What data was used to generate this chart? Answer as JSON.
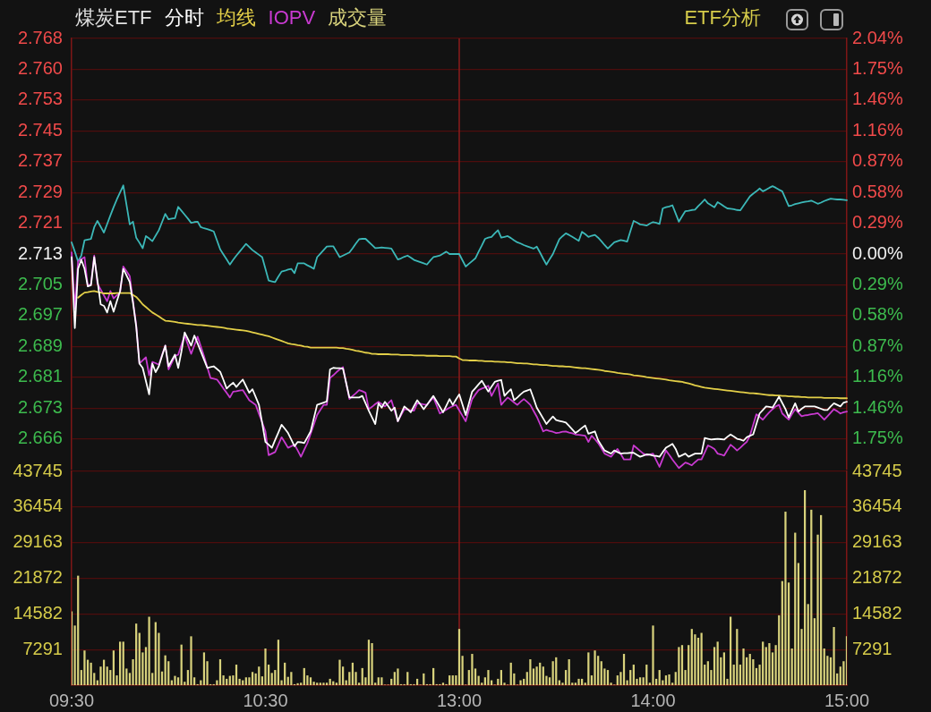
{
  "chart_data": [
    {
      "type": "line",
      "title": "煤炭ETF",
      "annotations": [
        "ETF分析"
      ],
      "legend": "top left",
      "grid": "y",
      "tick_labels": "y",
      "categories": [
        "09:30",
        null,
        null,
        null,
        null,
        null,
        null,
        null,
        null,
        null,
        null,
        null,
        null,
        null,
        null,
        null,
        null,
        null,
        null,
        null,
        null,
        null,
        null,
        null,
        null,
        null,
        null,
        null,
        null,
        null,
        null,
        null,
        null,
        null,
        null,
        null,
        null,
        null,
        null,
        null,
        null,
        null,
        null,
        null,
        null,
        null,
        null,
        null,
        null,
        null,
        null,
        null,
        null,
        null,
        null,
        null,
        null,
        null,
        null,
        null,
        "10:30",
        null,
        null,
        null,
        null,
        null,
        null,
        null,
        null,
        null,
        null,
        null,
        null,
        null,
        null,
        null,
        null,
        null,
        null,
        null,
        null,
        null,
        null,
        null,
        null,
        null,
        null,
        null,
        null,
        null,
        null,
        null,
        null,
        null,
        null,
        null,
        null,
        null,
        null,
        null,
        null,
        null,
        null,
        null,
        null,
        null,
        null,
        null,
        null,
        null,
        null,
        null,
        null,
        null,
        null,
        null,
        null,
        null,
        null,
        null,
        "13:00",
        null,
        null,
        null,
        null,
        null,
        null,
        null,
        null,
        null,
        null,
        null,
        null,
        null,
        null,
        null,
        null,
        null,
        null,
        null,
        null,
        null,
        null,
        null,
        null,
        null,
        null,
        null,
        null,
        null,
        null,
        null,
        null,
        null,
        null,
        null,
        null,
        null,
        null,
        null,
        null,
        null,
        null,
        null,
        null,
        null,
        null,
        null,
        null,
        null,
        null,
        null,
        null,
        null,
        null,
        null,
        null,
        null,
        null,
        null,
        "14:00",
        null,
        null,
        null,
        null,
        null,
        null,
        null,
        null,
        null,
        null,
        null,
        null,
        null,
        null,
        null,
        null,
        null,
        null,
        null,
        null,
        null,
        null,
        null,
        null,
        null,
        null,
        null,
        null,
        null,
        null,
        null,
        null,
        null,
        null,
        null,
        null,
        null,
        null,
        null,
        null,
        null,
        null,
        null,
        null,
        null,
        null,
        null,
        null,
        null,
        null,
        null,
        null,
        null,
        null,
        null,
        null,
        null,
        null,
        null,
        "15:00"
      ],
      "ylim": [
        2.6577,
        2.7683
      ],
      "yticks": [
        {
          "value": 2.6656,
          "label": "2.666"
        },
        {
          "value": 2.6735,
          "label": "2.673"
        },
        {
          "value": 2.6814,
          "label": "2.681"
        },
        {
          "value": 2.6893,
          "label": "2.689"
        },
        {
          "value": 2.6972,
          "label": "2.697"
        },
        {
          "value": 2.7051,
          "label": "2.705"
        },
        2.713,
        {
          "value": 2.7209,
          "label": "2.721"
        },
        {
          "value": 2.7288,
          "label": "2.729"
        },
        {
          "value": 2.7367,
          "label": "2.737"
        },
        {
          "value": 2.7446,
          "label": "2.745"
        },
        {
          "value": 2.7525,
          "label": "2.753"
        },
        {
          "value": 2.7604,
          "label": "2.760"
        },
        {
          "value": 2.7683,
          "label": "2.768"
        }
      ],
      "y2lim": [
        -2.0383,
        2.0383
      ],
      "y2ticks": [
        {
          "value": -1.7472,
          "label": "1.75%"
        },
        {
          "value": -1.456,
          "label": "1.46%"
        },
        {
          "value": -1.1648,
          "label": "1.16%"
        },
        {
          "value": -0.8736,
          "label": "0.87%"
        },
        {
          "value": -0.5824,
          "label": "0.58%"
        },
        {
          "value": -0.2912,
          "label": "0.29%"
        },
        {
          "value": 0,
          "label": "0.00%"
        },
        {
          "value": 0.2912,
          "label": "0.29%"
        },
        {
          "value": 0.5824,
          "label": "0.58%"
        },
        {
          "value": 0.8736,
          "label": "0.87%"
        },
        {
          "value": 1.1648,
          "label": "1.16%"
        },
        {
          "value": 1.456,
          "label": "1.46%"
        },
        {
          "value": 1.7472,
          "label": "1.75%"
        },
        {
          "value": 2.0383,
          "label": "2.04%"
        }
      ],
      "ref_lines": [
        {
          "axis": "x",
          "value": "13:00",
          "color": "#8c1c1c"
        }
      ],
      "series": [
        {
          "name": "分时",
          "color": "#ffffff",
          "values": [
            2.7122,
            2.694,
            2.7092,
            2.7115,
            2.7092,
            2.7047,
            2.705,
            2.7122,
            2.7062,
            2.7001,
            2.6997,
            2.698,
            2.7009,
            2.6982,
            2.7009,
            2.7035,
            2.7092,
            2.7075,
            2.7058,
            2.7005,
            2.6944,
            2.6849,
            2.6838,
            2.6804,
            2.677,
            2.6849,
            2.6827,
            2.6842,
            2.6869,
            2.6895,
            2.6842,
            2.6857,
            2.6872,
            2.6838,
            2.688,
            2.6929,
            2.6912,
            2.6895,
            2.6921,
            2.6901,
            2.688,
            2.6859,
            2.6838,
            2.684,
            2.6842,
            2.6835,
            2.6828,
            2.6807,
            2.6785,
            2.6793,
            2.68,
            2.6789,
            2.6799,
            2.6808,
            2.6791,
            2.6774,
            2.6783,
            2.6763,
            2.6743,
            2.6696,
            2.6648,
            2.6641,
            2.6633,
            2.6653,
            2.6672,
            2.6692,
            2.6682,
            2.6671,
            2.6654,
            2.6637,
            2.6648,
            2.6647,
            2.6645,
            2.666,
            2.6675,
            2.6709,
            2.6743,
            2.6746,
            2.6749,
            2.6752,
            2.6834,
            2.6838,
            2.6837,
            2.6837,
            2.6836,
            2.6799,
            2.6762,
            2.6762,
            2.6762,
            2.6762,
            2.6766,
            2.6747,
            2.6728,
            2.6711,
            2.6694,
            2.6747,
            2.6736,
            2.6751,
            2.674,
            2.6728,
            2.6736,
            2.6701,
            2.672,
            2.6739,
            2.6732,
            2.6724,
            2.674,
            2.6755,
            2.6744,
            2.6732,
            2.6743,
            2.6755,
            2.6766,
            2.6752,
            2.6738,
            2.6724,
            2.6741,
            2.6758,
            2.6743,
            2.6757,
            2.677,
            2.6744,
            2.6717,
            2.6747,
            2.6777,
            2.6786,
            2.6796,
            2.6805,
            2.6791,
            2.6777,
            2.679,
            2.6802,
            2.6805,
            2.6807,
            2.6766,
            2.6775,
            2.6783,
            2.6755,
            2.6762,
            2.677,
            2.6777,
            2.678,
            2.6783,
            2.676,
            2.6736,
            2.6722,
            2.6708,
            2.6694,
            2.6704,
            2.6713,
            2.6704,
            2.6702,
            2.67,
            2.6698,
            2.6689,
            2.668,
            2.6671,
            2.6677,
            2.6684,
            2.669,
            2.6669,
            2.6672,
            2.6675,
            2.6652,
            2.6639,
            2.6626,
            2.6622,
            2.6618,
            2.6626,
            2.6622,
            2.6618,
            2.6619,
            2.6619,
            2.662,
            2.662,
            2.6615,
            2.661,
            2.6613,
            2.6616,
            2.6615,
            2.6613,
            2.6612,
            2.661,
            2.6622,
            2.6633,
            2.6638,
            2.6643,
            2.663,
            2.661,
            2.6614,
            2.6618,
            2.661,
            2.6614,
            2.6618,
            2.6618,
            2.6618,
            2.6658,
            2.6656,
            2.6654,
            2.6655,
            2.6656,
            2.6655,
            2.6654,
            2.6661,
            2.6667,
            2.6662,
            2.6656,
            2.6654,
            2.6651,
            2.666,
            2.6664,
            2.6667,
            2.6694,
            2.6721,
            2.673,
            2.6739,
            2.6738,
            2.6736,
            2.675,
            2.6764,
            2.6748,
            2.6732,
            2.6711,
            2.6729,
            2.6747,
            2.6726,
            2.6733,
            2.6739,
            2.6739,
            2.6739,
            2.6739,
            2.6736,
            2.6733,
            2.673,
            2.673,
            2.6739,
            2.6747,
            2.6743,
            2.6739,
            2.6749,
            2.6751
          ]
        },
        {
          "name": "均线",
          "color": "#e3cf48",
          "values": [
            null,
            null,
            2.7018,
            2.7025,
            2.7031,
            2.7032,
            2.7034,
            2.7035,
            2.7033,
            2.7031,
            2.7029,
            2.7029,
            2.7029,
            2.7029,
            2.703,
            2.703,
            2.703,
            2.703,
            2.703,
            2.7025,
            2.702,
            2.7011,
            2.7001,
            2.6994,
            2.6987,
            2.698,
            2.6975,
            2.697,
            2.6964,
            2.6959,
            2.6958,
            2.6957,
            2.6956,
            2.6954,
            2.6953,
            2.6952,
            2.6951,
            2.695,
            2.6949,
            2.6948,
            2.6948,
            2.6947,
            2.6946,
            2.6945,
            2.6944,
            2.6943,
            2.6942,
            2.6941,
            2.6939,
            2.6938,
            2.6937,
            2.6936,
            2.6935,
            2.6934,
            2.6933,
            2.6931,
            2.6929,
            2.6927,
            2.6925,
            2.6923,
            2.6921,
            2.6919,
            2.6916,
            2.6913,
            2.691,
            2.6907,
            2.6904,
            2.6901,
            2.6899,
            2.6898,
            2.6896,
            2.6895,
            2.6893,
            2.6892,
            2.689,
            2.689,
            2.689,
            2.689,
            2.689,
            2.689,
            2.689,
            2.689,
            2.689,
            2.6889,
            2.6889,
            2.6887,
            2.6886,
            2.6884,
            2.6882,
            2.6881,
            2.6879,
            2.6877,
            2.6876,
            2.6874,
            2.6874,
            2.6873,
            2.6873,
            2.6873,
            2.6873,
            2.6872,
            2.6872,
            2.6872,
            2.6871,
            2.6871,
            2.6871,
            2.6871,
            2.687,
            2.687,
            2.687,
            2.687,
            2.6869,
            2.6869,
            2.6869,
            2.6869,
            2.6868,
            2.6868,
            2.6868,
            2.6868,
            2.6867,
            2.6867,
            2.6862,
            2.6858,
            2.6858,
            2.6857,
            2.6857,
            2.6857,
            2.6856,
            2.6856,
            2.6855,
            2.6855,
            2.6855,
            2.6854,
            2.6854,
            2.6853,
            2.6853,
            2.6852,
            2.6852,
            2.6851,
            2.685,
            2.685,
            2.6849,
            2.6849,
            2.6848,
            2.6847,
            2.6847,
            2.6846,
            2.6845,
            2.6845,
            2.6844,
            2.6843,
            2.6843,
            2.6842,
            2.6842,
            2.6841,
            2.6841,
            2.684,
            2.6839,
            2.6838,
            2.6837,
            2.6837,
            2.6836,
            2.6835,
            2.6834,
            2.6833,
            2.6832,
            2.683,
            2.6829,
            2.6828,
            2.6827,
            2.6825,
            2.6824,
            2.6823,
            2.6822,
            2.6821,
            2.6819,
            2.6818,
            2.6817,
            2.6816,
            2.6814,
            2.6813,
            2.6812,
            2.6811,
            2.681,
            2.6809,
            2.6808,
            2.6806,
            2.6805,
            2.6804,
            2.6803,
            2.6802,
            2.68,
            2.6798,
            2.6796,
            2.6793,
            2.6791,
            2.6789,
            2.6787,
            2.6786,
            2.6785,
            2.6784,
            2.6783,
            2.6782,
            2.6781,
            2.678,
            2.6779,
            2.6778,
            2.6777,
            2.6776,
            2.6775,
            2.6774,
            2.6773,
            2.6773,
            2.6772,
            2.6771,
            2.677,
            2.6769,
            2.6768,
            2.6768,
            2.6767,
            2.6767,
            2.6766,
            2.6766,
            2.6765,
            2.6765,
            2.6764,
            2.6764,
            2.6763,
            2.6763,
            2.6762,
            2.6762,
            2.6762,
            2.6762,
            2.6762,
            2.6761,
            2.6761,
            2.6761,
            2.6761,
            2.6761,
            2.676,
            2.676,
            2.676
          ]
        },
        {
          "name": "IOPV",
          "color": "#c83ad0",
          "values": [
            2.7134,
            2.699,
            2.7111,
            2.7117,
            2.7122,
            2.7047,
            2.7054,
            2.7126,
            2.7054,
            2.7039,
            2.7024,
            2.7009,
            2.7035,
            2.7016,
            2.7024,
            2.7031,
            2.7098,
            2.7086,
            2.7073,
            2.7009,
            2.6948,
            2.6849,
            2.6857,
            2.6865,
            2.6819,
            2.6853,
            2.685,
            2.6846,
            2.6871,
            2.6895,
            2.6834,
            2.6851,
            2.6868,
            2.6872,
            2.6897,
            2.6921,
            2.6898,
            2.6874,
            2.6896,
            2.6918,
            2.6893,
            2.6868,
            2.684,
            2.6812,
            2.681,
            2.6808,
            2.6797,
            2.6785,
            2.6774,
            2.6762,
            2.6777,
            2.6778,
            2.678,
            2.6781,
            2.6768,
            2.6755,
            2.6749,
            2.6743,
            2.672,
            2.6698,
            2.6675,
            2.6614,
            2.6618,
            2.6622,
            2.6641,
            2.666,
            2.6647,
            2.6633,
            2.6637,
            2.6641,
            2.6626,
            2.661,
            2.6628,
            2.6645,
            2.6669,
            2.6693,
            2.6717,
            2.673,
            2.6743,
            2.6743,
            2.6812,
            2.6819,
            2.6827,
            2.6834,
            2.684,
            2.6799,
            2.6758,
            2.6766,
            2.6773,
            2.6781,
            2.6778,
            2.6774,
            2.6732,
            2.6738,
            2.6745,
            2.6751,
            2.6745,
            2.6739,
            2.6747,
            2.6755,
            2.6728,
            2.6701,
            2.6717,
            2.6732,
            2.6731,
            2.6729,
            2.6728,
            2.6747,
            2.6746,
            2.6744,
            2.6743,
            2.6753,
            2.6762,
            2.6742,
            2.6721,
            2.6726,
            2.6731,
            2.6736,
            2.674,
            2.6743,
            2.6729,
            2.6715,
            2.6701,
            2.673,
            2.6758,
            2.677,
            2.6781,
            2.6785,
            2.6788,
            2.6792,
            2.6766,
            2.6782,
            2.6798,
            2.6743,
            2.6753,
            2.6762,
            2.6756,
            2.6749,
            2.6743,
            2.6751,
            2.6758,
            2.6751,
            2.6743,
            2.6728,
            2.6713,
            2.6694,
            2.6675,
            2.6679,
            2.6676,
            2.6674,
            2.6671,
            2.6672,
            2.6674,
            2.6675,
            2.6672,
            2.667,
            2.6667,
            2.6666,
            2.6665,
            2.6664,
            2.6648,
            2.6664,
            2.6655,
            2.6645,
            2.6632,
            2.6618,
            2.6614,
            2.661,
            2.662,
            2.663,
            2.6617,
            2.6603,
            2.6603,
            2.6603,
            2.6639,
            2.6632,
            2.6625,
            2.6618,
            2.6614,
            2.6616,
            2.6618,
            2.6601,
            2.6584,
            2.6605,
            2.6626,
            2.6615,
            2.6603,
            2.6592,
            2.6581,
            2.6588,
            2.6595,
            2.6592,
            2.6588,
            2.6596,
            2.6603,
            2.6603,
            2.6621,
            2.6639,
            2.6635,
            2.663,
            2.6618,
            2.6616,
            2.6613,
            2.6627,
            2.6641,
            2.6634,
            2.6626,
            2.6633,
            2.6641,
            2.6648,
            2.6664,
            2.6692,
            2.6719,
            2.6712,
            2.6705,
            2.6715,
            2.6724,
            2.6732,
            2.6739,
            2.6743,
            2.6721,
            2.6713,
            2.6705,
            2.6719,
            2.6732,
            2.6723,
            2.6714,
            2.6716,
            2.6717,
            2.6719,
            2.672,
            2.6722,
            2.6714,
            2.6705,
            2.6714,
            2.6723,
            2.6732,
            2.6727,
            2.6721,
            2.6724,
            2.6726
          ]
        },
        {
          "color": "#3cb8b8",
          "values": [
            2.716,
            2.7136,
            2.7111,
            2.7126,
            2.7165,
            2.7167,
            2.7169,
            2.7199,
            2.7215,
            2.72,
            2.7185,
            2.7207,
            2.7229,
            2.725,
            2.727,
            2.7288,
            2.7306,
            2.7256,
            2.7206,
            2.7213,
            2.7172,
            2.7159,
            2.7145,
            2.7176,
            2.717,
            2.7163,
            2.7177,
            2.7191,
            2.7212,
            2.7233,
            2.7219,
            2.7221,
            2.7222,
            2.7251,
            2.7241,
            2.7231,
            2.7221,
            2.721,
            2.7212,
            2.7213,
            2.7199,
            2.7196,
            2.7194,
            2.7191,
            2.7188,
            2.7165,
            2.7142,
            2.7129,
            2.7116,
            2.7103,
            2.7115,
            2.7126,
            2.7136,
            2.7146,
            2.7156,
            2.7148,
            2.714,
            2.7134,
            2.7128,
            2.7122,
            2.7092,
            2.7062,
            2.706,
            2.7058,
            2.7072,
            2.7085,
            2.7087,
            2.709,
            2.7092,
            2.7081,
            2.7106,
            2.7106,
            2.7106,
            2.7101,
            2.7097,
            2.7092,
            2.7122,
            2.7131,
            2.714,
            2.7149,
            2.715,
            2.715,
            2.7136,
            2.7122,
            2.7126,
            2.713,
            2.7134,
            2.7145,
            2.7157,
            2.7168,
            2.7169,
            2.7169,
            2.7161,
            2.7153,
            2.7145,
            2.7146,
            2.7147,
            2.7146,
            2.7145,
            2.7144,
            2.713,
            2.7116,
            2.7119,
            2.7123,
            2.7126,
            2.7121,
            2.7115,
            2.7112,
            2.7109,
            2.7106,
            2.7103,
            2.7113,
            2.7122,
            2.7124,
            2.7126,
            2.7131,
            2.7136,
            2.713,
            2.713,
            2.713,
            2.713,
            2.7114,
            2.7098,
            2.7105,
            2.7112,
            2.7119,
            2.7136,
            2.7152,
            2.7169,
            2.7172,
            2.7174,
            2.7183,
            2.7191,
            2.7172,
            2.7174,
            2.7176,
            2.7171,
            2.7165,
            2.716,
            2.7157,
            2.7153,
            2.715,
            2.7147,
            2.7144,
            2.7149,
            2.7134,
            2.7118,
            2.7103,
            2.7117,
            2.713,
            2.7149,
            2.7168,
            2.7176,
            2.7183,
            2.7179,
            2.7174,
            2.7169,
            2.7164,
            2.7187,
            2.7181,
            2.7174,
            2.7177,
            2.7179,
            2.7172,
            2.7163,
            2.7153,
            2.7144,
            2.7152,
            2.716,
            2.7163,
            2.7166,
            2.7164,
            2.7162,
            2.7189,
            2.7215,
            2.7211,
            2.7206,
            2.7205,
            2.7203,
            2.7208,
            2.7212,
            2.721,
            2.7207,
            2.7247,
            2.725,
            2.7252,
            2.7255,
            2.7234,
            2.7213,
            2.7227,
            2.724,
            2.7241,
            2.7243,
            2.7244,
            2.7253,
            2.7261,
            2.727,
            2.726,
            2.7255,
            2.725,
            2.7263,
            2.7258,
            2.7252,
            2.7247,
            2.7246,
            2.7245,
            2.7243,
            2.7242,
            2.7254,
            2.7266,
            2.7278,
            2.7285,
            2.7291,
            2.7298,
            2.7291,
            2.7295,
            2.73,
            2.7304,
            2.73,
            2.7295,
            2.7291,
            2.7272,
            2.7253,
            2.7255,
            2.7258,
            2.726,
            2.7262,
            2.7264,
            2.7265,
            2.7267,
            2.7263,
            2.7259,
            2.7262,
            2.7266,
            2.7269,
            2.7272,
            2.7271,
            2.727,
            2.727,
            2.7269,
            2.7268
          ]
        }
      ]
    },
    {
      "type": "bar",
      "legend": "top left",
      "grid": "y",
      "categories": [
        "09:30",
        null,
        null,
        null,
        null,
        null,
        null,
        null,
        null,
        null,
        null,
        null,
        null,
        null,
        null,
        null,
        null,
        null,
        null,
        null,
        null,
        null,
        null,
        null,
        null,
        null,
        null,
        null,
        null,
        null,
        null,
        null,
        null,
        null,
        null,
        null,
        null,
        null,
        null,
        null,
        null,
        null,
        null,
        null,
        null,
        null,
        null,
        null,
        null,
        null,
        null,
        null,
        null,
        null,
        null,
        null,
        null,
        null,
        null,
        null,
        "10:30",
        null,
        null,
        null,
        null,
        null,
        null,
        null,
        null,
        null,
        null,
        null,
        null,
        null,
        null,
        null,
        null,
        null,
        null,
        null,
        null,
        null,
        null,
        null,
        null,
        null,
        null,
        null,
        null,
        null,
        null,
        null,
        null,
        null,
        null,
        null,
        null,
        null,
        null,
        null,
        null,
        null,
        null,
        null,
        null,
        null,
        null,
        null,
        null,
        null,
        null,
        null,
        null,
        null,
        null,
        null,
        null,
        null,
        null,
        null,
        "13:00",
        null,
        null,
        null,
        null,
        null,
        null,
        null,
        null,
        null,
        null,
        null,
        null,
        null,
        null,
        null,
        null,
        null,
        null,
        null,
        null,
        null,
        null,
        null,
        null,
        null,
        null,
        null,
        null,
        null,
        null,
        null,
        null,
        null,
        null,
        null,
        null,
        null,
        null,
        null,
        null,
        null,
        null,
        null,
        null,
        null,
        null,
        null,
        null,
        null,
        null,
        null,
        null,
        null,
        null,
        null,
        null,
        null,
        null,
        null,
        "14:00",
        null,
        null,
        null,
        null,
        null,
        null,
        null,
        null,
        null,
        null,
        null,
        null,
        null,
        null,
        null,
        null,
        null,
        null,
        null,
        null,
        null,
        null,
        null,
        null,
        null,
        null,
        null,
        null,
        null,
        null,
        null,
        null,
        null,
        null,
        null,
        null,
        null,
        null,
        null,
        null,
        null,
        null,
        null,
        null,
        null,
        null,
        null,
        null,
        null,
        null,
        null,
        null,
        null,
        null,
        null,
        null,
        null,
        null,
        null,
        "15:00"
      ],
      "ylim": [
        0,
        43745
      ],
      "yticks": [
        7291,
        14582,
        21872,
        29163,
        36454,
        43745
      ],
      "y2lim": [
        0,
        43745
      ],
      "y2ticks": [
        7291,
        14582,
        21872,
        29163,
        36454,
        43745
      ],
      "ref_lines": [
        {
          "axis": "x",
          "value": "13:00",
          "color": "#8c1c1c"
        }
      ],
      "series": [
        {
          "name": "成交量",
          "color": "#d8d27c",
          "values": [
            15100,
            12200,
            22400,
            3100,
            7100,
            5200,
            4600,
            2500,
            1000,
            3800,
            5200,
            3800,
            3100,
            7100,
            2000,
            8900,
            8900,
            3400,
            2500,
            5300,
            12600,
            10700,
            6700,
            7800,
            14000,
            2500,
            12900,
            10700,
            2800,
            6100,
            4900,
            1000,
            1900,
            1600,
            8300,
            700,
            3100,
            10000,
            1600,
            200,
            1000,
            6700,
            4900,
            200,
            200,
            1000,
            5300,
            2000,
            1300,
            1900,
            2000,
            4200,
            1300,
            1000,
            1600,
            1600,
            2700,
            2400,
            3800,
            1800,
            7500,
            4200,
            2500,
            3100,
            9300,
            1000,
            4600,
            1700,
            2700,
            200,
            400,
            500,
            3500,
            2000,
            1600,
            700,
            500,
            500,
            500,
            500,
            1300,
            800,
            500,
            5200,
            3800,
            1000,
            2700,
            4600,
            2700,
            500,
            3500,
            1600,
            9300,
            8600,
            500,
            1600,
            1600,
            100,
            100,
            1300,
            2700,
            3400,
            200,
            200,
            2700,
            200,
            200,
            1300,
            100,
            2400,
            200,
            200,
            3500,
            200,
            200,
            500,
            200,
            2000,
            2000,
            2000,
            11500,
            6000,
            100,
            3100,
            6400,
            3400,
            1900,
            500,
            1600,
            3100,
            1000,
            100,
            1300,
            3100,
            500,
            100,
            4600,
            2400,
            100,
            1000,
            1300,
            2700,
            5300,
            3400,
            3800,
            4600,
            3800,
            1900,
            1600,
            4900,
            5700,
            1000,
            500,
            3100,
            5300,
            500,
            500,
            1300,
            1300,
            500,
            6700,
            2000,
            7100,
            6000,
            4900,
            3400,
            3100,
            500,
            100,
            2000,
            2700,
            6400,
            1000,
            3100,
            4200,
            1300,
            1600,
            1600,
            4200,
            500,
            12200,
            1300,
            3100,
            1000,
            2000,
            2200,
            500,
            2700,
            7800,
            8200,
            3100,
            8200,
            11500,
            10400,
            9700,
            10700,
            4200,
            4900,
            3100,
            7800,
            8900,
            5700,
            6700,
            1300,
            14000,
            4200,
            11500,
            4200,
            7500,
            5700,
            6400,
            5300,
            3500,
            4200,
            8900,
            7800,
            8600,
            6700,
            8200,
            14300,
            21300,
            35500,
            21000,
            7500,
            31200,
            25000,
            11500,
            39900,
            16600,
            35900,
            13700,
            30800,
            34800,
            7500,
            6000,
            5700,
            11900,
            2400,
            3800,
            4900,
            10000
          ]
        }
      ]
    }
  ]
}
